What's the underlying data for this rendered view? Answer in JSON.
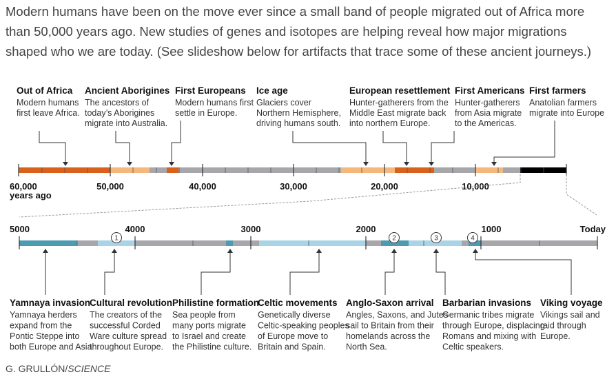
{
  "intro": "Modern humans have been on the move ever since a small band of people migrated out of Africa more than 50,000 years ago. New studies of genes and isotopes are helping reveal how major migrations shaped who we are today. (See slideshow below for artifacts that trace some of these ancient journeys.)",
  "colors": {
    "orange": "#d9611c",
    "peach": "#f5b77c",
    "grey": "#a7a7ab",
    "black": "#000000",
    "teal": "#4d9bb0",
    "lightblue": "#a8d4e6",
    "line": "#333333"
  },
  "top_timeline": {
    "ticks": [
      "60,000",
      "50,000",
      "40,000",
      "30,000",
      "20,000",
      "10,000"
    ],
    "unit": "years ago",
    "events": [
      {
        "title": "Out of Africa",
        "desc": [
          "Modern humans",
          "first leave Africa."
        ]
      },
      {
        "title": "Ancient Aborigines",
        "desc": [
          "The ancestors of",
          "today’s Aborigines",
          "migrate into Australia."
        ]
      },
      {
        "title": "First Europeans",
        "desc": [
          "Modern humans first",
          "settle in Europe."
        ]
      },
      {
        "title": "Ice age",
        "desc": [
          "Glaciers cover",
          "Northern Hemisphere,",
          "driving humans south."
        ]
      },
      {
        "title": "European resettlement",
        "desc": [
          "Hunter-gatherers from the",
          "Middle East migrate back",
          "into northern Europe."
        ]
      },
      {
        "title": "First Americans",
        "desc": [
          "Hunter-gatherers",
          "from Asia migrate",
          "to the Americas."
        ]
      },
      {
        "title": "First farmers",
        "desc": [
          "Anatolian farmers",
          "migrate into Europe"
        ]
      }
    ]
  },
  "bottom_timeline": {
    "ticks": [
      "5000",
      "4000",
      "3000",
      "2000",
      "1000",
      "Today"
    ],
    "markers": [
      "1",
      "2",
      "3",
      "4"
    ],
    "events": [
      {
        "title": "Yamnaya invasion",
        "desc": [
          "Yamnaya herders",
          "expand from the",
          "Pontic Steppe into",
          "both Europe and Asia"
        ]
      },
      {
        "title": "Cultural revolution",
        "desc": [
          "The creators of the",
          "successful Corded",
          "Ware culture spread",
          "throughout Europe."
        ]
      },
      {
        "title": "Philistine formation",
        "desc": [
          "Sea people from",
          "many ports migrate",
          "to Israel and create",
          "the Philistine culture."
        ]
      },
      {
        "title": "Celtic movements",
        "desc": [
          "Genetically diverse",
          "Celtic-speaking peoples",
          "of Europe move to",
          "Britain  and Spain."
        ]
      },
      {
        "title": "Anglo-Saxon arrival",
        "desc": [
          "Angles, Saxons, and Jutes",
          "sail to Britain from their",
          "homelands across the",
          "North Sea."
        ]
      },
      {
        "title": "Barbarian invasions",
        "desc": [
          "Germanic tribes migrate",
          "through Europe, displacing",
          "Romans and mixing with",
          "Celtic speakers."
        ]
      },
      {
        "title": "Viking voyage",
        "desc": [
          "Vikings sail and",
          "raid through",
          "Europe."
        ]
      }
    ]
  },
  "credit": {
    "name": "G. GRULLÓN/",
    "source": "SCIENCE"
  }
}
